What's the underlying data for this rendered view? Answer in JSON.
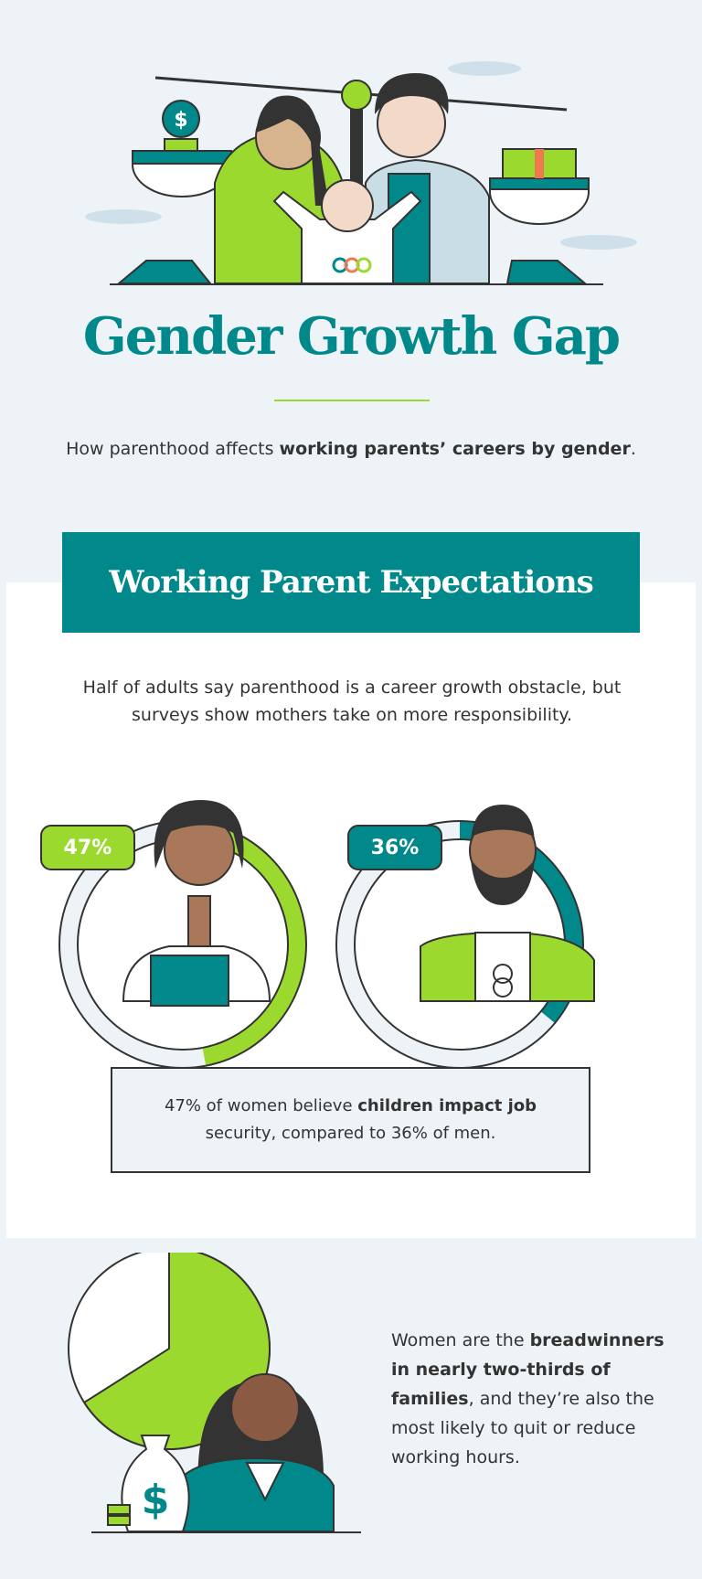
{
  "header": {
    "title": "Gender Growth Gap",
    "subtitle_plain": "How parenthood affects ",
    "subtitle_bold": "working parents’ careers by gender",
    "subtitle_end": "."
  },
  "section1": {
    "heading": "Working Parent Expectations",
    "intro": "Half of adults say parenthood is a career growth obstacle, but surveys show mothers take on more responsibility.",
    "women": {
      "label": "47%",
      "value": 47,
      "color": "#9bd92f"
    },
    "men": {
      "label": "36%",
      "value": 36,
      "color": "#00888a"
    },
    "callout_plain1": "47% of women believe ",
    "callout_bold": "children impact job",
    "callout_plain2": " security, compared to 36% of men."
  },
  "section2": {
    "text_plain1": "Women are the ",
    "text_bold": "breadwinners in nearly two-thirds of families",
    "text_plain2": ", and they’re also the most likely to quit or reduce working hours.",
    "pie_fraction": 0.66,
    "money_symbol": "$"
  },
  "colors": {
    "teal": "#00888a",
    "green": "#9bd92f",
    "bg": "#edf3f6",
    "ink": "#333333"
  }
}
